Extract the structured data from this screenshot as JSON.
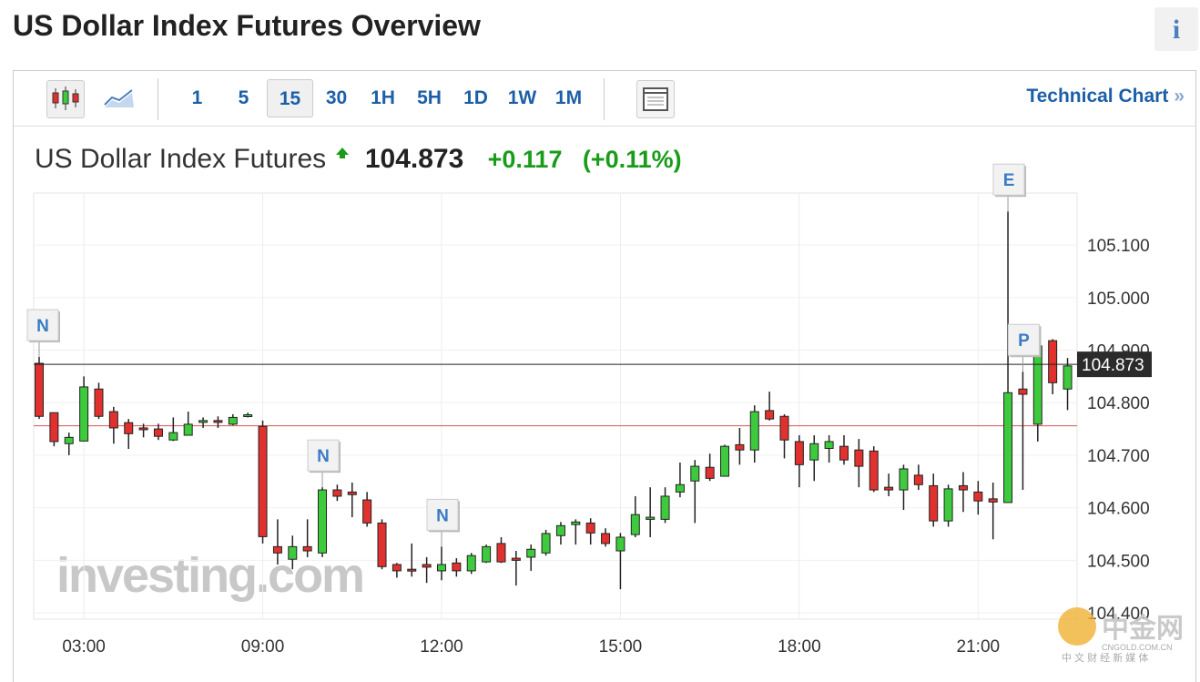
{
  "header": {
    "title": "US Dollar Index Futures Overview",
    "info_icon": "i"
  },
  "toolbar": {
    "intervals": [
      {
        "label": "1"
      },
      {
        "label": "5"
      },
      {
        "label": "15",
        "selected": true
      },
      {
        "label": "30"
      },
      {
        "label": "1H"
      },
      {
        "label": "5H"
      },
      {
        "label": "1D"
      },
      {
        "label": "1W"
      },
      {
        "label": "1M"
      }
    ],
    "link": "Technical Chart",
    "link_arrow": "»"
  },
  "quote": {
    "name": "US Dollar Index Futures",
    "change": "+0.117",
    "change_percent": "(+0.11%)"
  },
  "chart_data": {
    "type": "candlestick",
    "categories": [
      null,
      null,
      null,
      "03:00",
      null,
      null,
      null,
      null,
      null,
      null,
      null,
      null,
      null,
      null,
      null,
      "09:00",
      null,
      null,
      null,
      null,
      null,
      null,
      null,
      null,
      null,
      null,
      null,
      "12:00",
      null,
      null,
      null,
      null,
      null,
      null,
      null,
      null,
      null,
      null,
      null,
      "15:00",
      null,
      null,
      null,
      null,
      null,
      null,
      null,
      null,
      null,
      null,
      null,
      "18:00",
      null,
      null,
      null,
      null,
      null,
      null,
      null,
      null,
      null,
      null,
      null,
      "21:00",
      null,
      null,
      null,
      null,
      null,
      null
    ],
    "open": [
      104.875,
      104.781,
      104.722,
      104.727,
      104.826,
      104.783,
      104.762,
      104.752,
      104.75,
      104.729,
      104.738,
      104.763,
      104.766,
      104.759,
      104.774,
      104.755,
      104.526,
      104.502,
      104.526,
      104.514,
      104.634,
      104.63,
      104.615,
      104.571,
      104.492,
      104.483,
      104.492,
      104.48,
      104.495,
      104.48,
      104.497,
      104.532,
      104.504,
      104.506,
      104.514,
      104.547,
      104.568,
      104.571,
      104.551,
      104.518,
      104.549,
      104.578,
      104.578,
      104.63,
      104.651,
      104.677,
      104.66,
      104.72,
      104.71,
      104.785,
      104.774,
      104.726,
      104.691,
      104.713,
      104.717,
      104.71,
      104.708,
      104.639,
      104.634,
      104.662,
      104.642,
      104.575,
      104.642,
      104.63,
      104.617,
      104.61,
      104.826,
      104.759,
      104.918,
      104.826
    ],
    "high": [
      104.887,
      104.781,
      104.743,
      104.85,
      104.838,
      104.792,
      104.769,
      104.76,
      104.76,
      104.772,
      104.783,
      104.772,
      104.774,
      104.778,
      104.781,
      104.766,
      104.578,
      104.547,
      104.578,
      104.639,
      104.644,
      104.648,
      104.63,
      104.578,
      104.495,
      104.532,
      104.506,
      104.526,
      104.504,
      104.514,
      104.53,
      104.544,
      104.518,
      104.53,
      104.558,
      104.573,
      104.578,
      104.58,
      104.561,
      104.552,
      104.622,
      104.639,
      104.639,
      104.686,
      104.691,
      104.703,
      104.72,
      104.752,
      104.795,
      104.821,
      104.778,
      104.738,
      104.738,
      104.738,
      104.738,
      104.731,
      104.717,
      104.665,
      104.682,
      104.682,
      104.665,
      104.644,
      104.668,
      104.651,
      104.648,
      105.164,
      104.859,
      104.915,
      104.921,
      104.885
    ],
    "low": [
      104.769,
      104.717,
      104.7,
      104.726,
      104.769,
      104.722,
      104.712,
      104.734,
      104.729,
      104.727,
      104.738,
      104.752,
      104.752,
      104.757,
      104.772,
      104.532,
      104.492,
      104.483,
      104.506,
      104.506,
      104.613,
      104.582,
      104.564,
      104.483,
      104.467,
      104.469,
      104.457,
      104.462,
      104.469,
      104.474,
      104.495,
      104.495,
      104.452,
      104.48,
      104.509,
      104.53,
      104.53,
      104.53,
      104.526,
      104.445,
      104.544,
      104.544,
      104.571,
      104.62,
      104.571,
      104.651,
      104.66,
      104.682,
      104.686,
      104.766,
      104.694,
      104.639,
      104.651,
      104.686,
      104.682,
      104.639,
      104.63,
      104.622,
      104.596,
      104.634,
      104.564,
      104.564,
      104.592,
      104.587,
      104.54,
      104.61,
      104.634,
      104.726,
      104.816,
      104.786
    ],
    "close": [
      104.774,
      104.726,
      104.734,
      104.83,
      104.774,
      104.752,
      104.741,
      104.749,
      104.736,
      104.743,
      104.759,
      104.766,
      104.763,
      104.772,
      104.777,
      104.545,
      104.514,
      104.526,
      104.518,
      104.634,
      104.622,
      104.625,
      104.571,
      104.488,
      104.48,
      104.48,
      104.487,
      104.492,
      104.48,
      104.509,
      104.526,
      104.497,
      104.5,
      104.521,
      104.551,
      104.566,
      104.573,
      104.552,
      104.532,
      104.544,
      104.587,
      104.582,
      104.622,
      104.644,
      104.679,
      104.656,
      104.717,
      104.71,
      104.783,
      104.769,
      104.729,
      104.682,
      104.722,
      104.726,
      104.691,
      104.679,
      104.634,
      104.634,
      104.674,
      104.644,
      104.575,
      104.636,
      104.634,
      104.613,
      104.611,
      104.819,
      104.816,
      104.908,
      104.838,
      104.87
    ],
    "ylim": [
      104.388,
      105.199
    ],
    "yticks": [
      {
        "value": 104.4,
        "label": "104.400"
      },
      {
        "value": 104.5,
        "label": "104.500"
      },
      {
        "value": 104.6,
        "label": "104.600"
      },
      {
        "value": 104.7,
        "label": "104.700"
      },
      {
        "value": 104.8,
        "label": "104.800"
      },
      {
        "value": 104.9,
        "label": "104.900"
      },
      {
        "value": 105.0,
        "label": "105.000"
      },
      {
        "value": 105.1,
        "label": "105.100"
      }
    ],
    "last_price": 104.873,
    "previous_close": 104.756,
    "up_color": "#3dca3d",
    "down_color": "#e0312f",
    "grid": true,
    "events": [
      {
        "label": "N",
        "index": 0
      },
      {
        "label": "N",
        "index": 19
      },
      {
        "label": "N",
        "index": 27
      },
      {
        "label": "E",
        "index": 65
      },
      {
        "label": "P",
        "index": 66
      }
    ]
  },
  "watermarks": {
    "brand": "investing.com",
    "cn_name": "中金网",
    "cn_domain": "CNGOLD.COM.CN",
    "cn_slogan": "中 文 财 经 新 媒 体"
  }
}
